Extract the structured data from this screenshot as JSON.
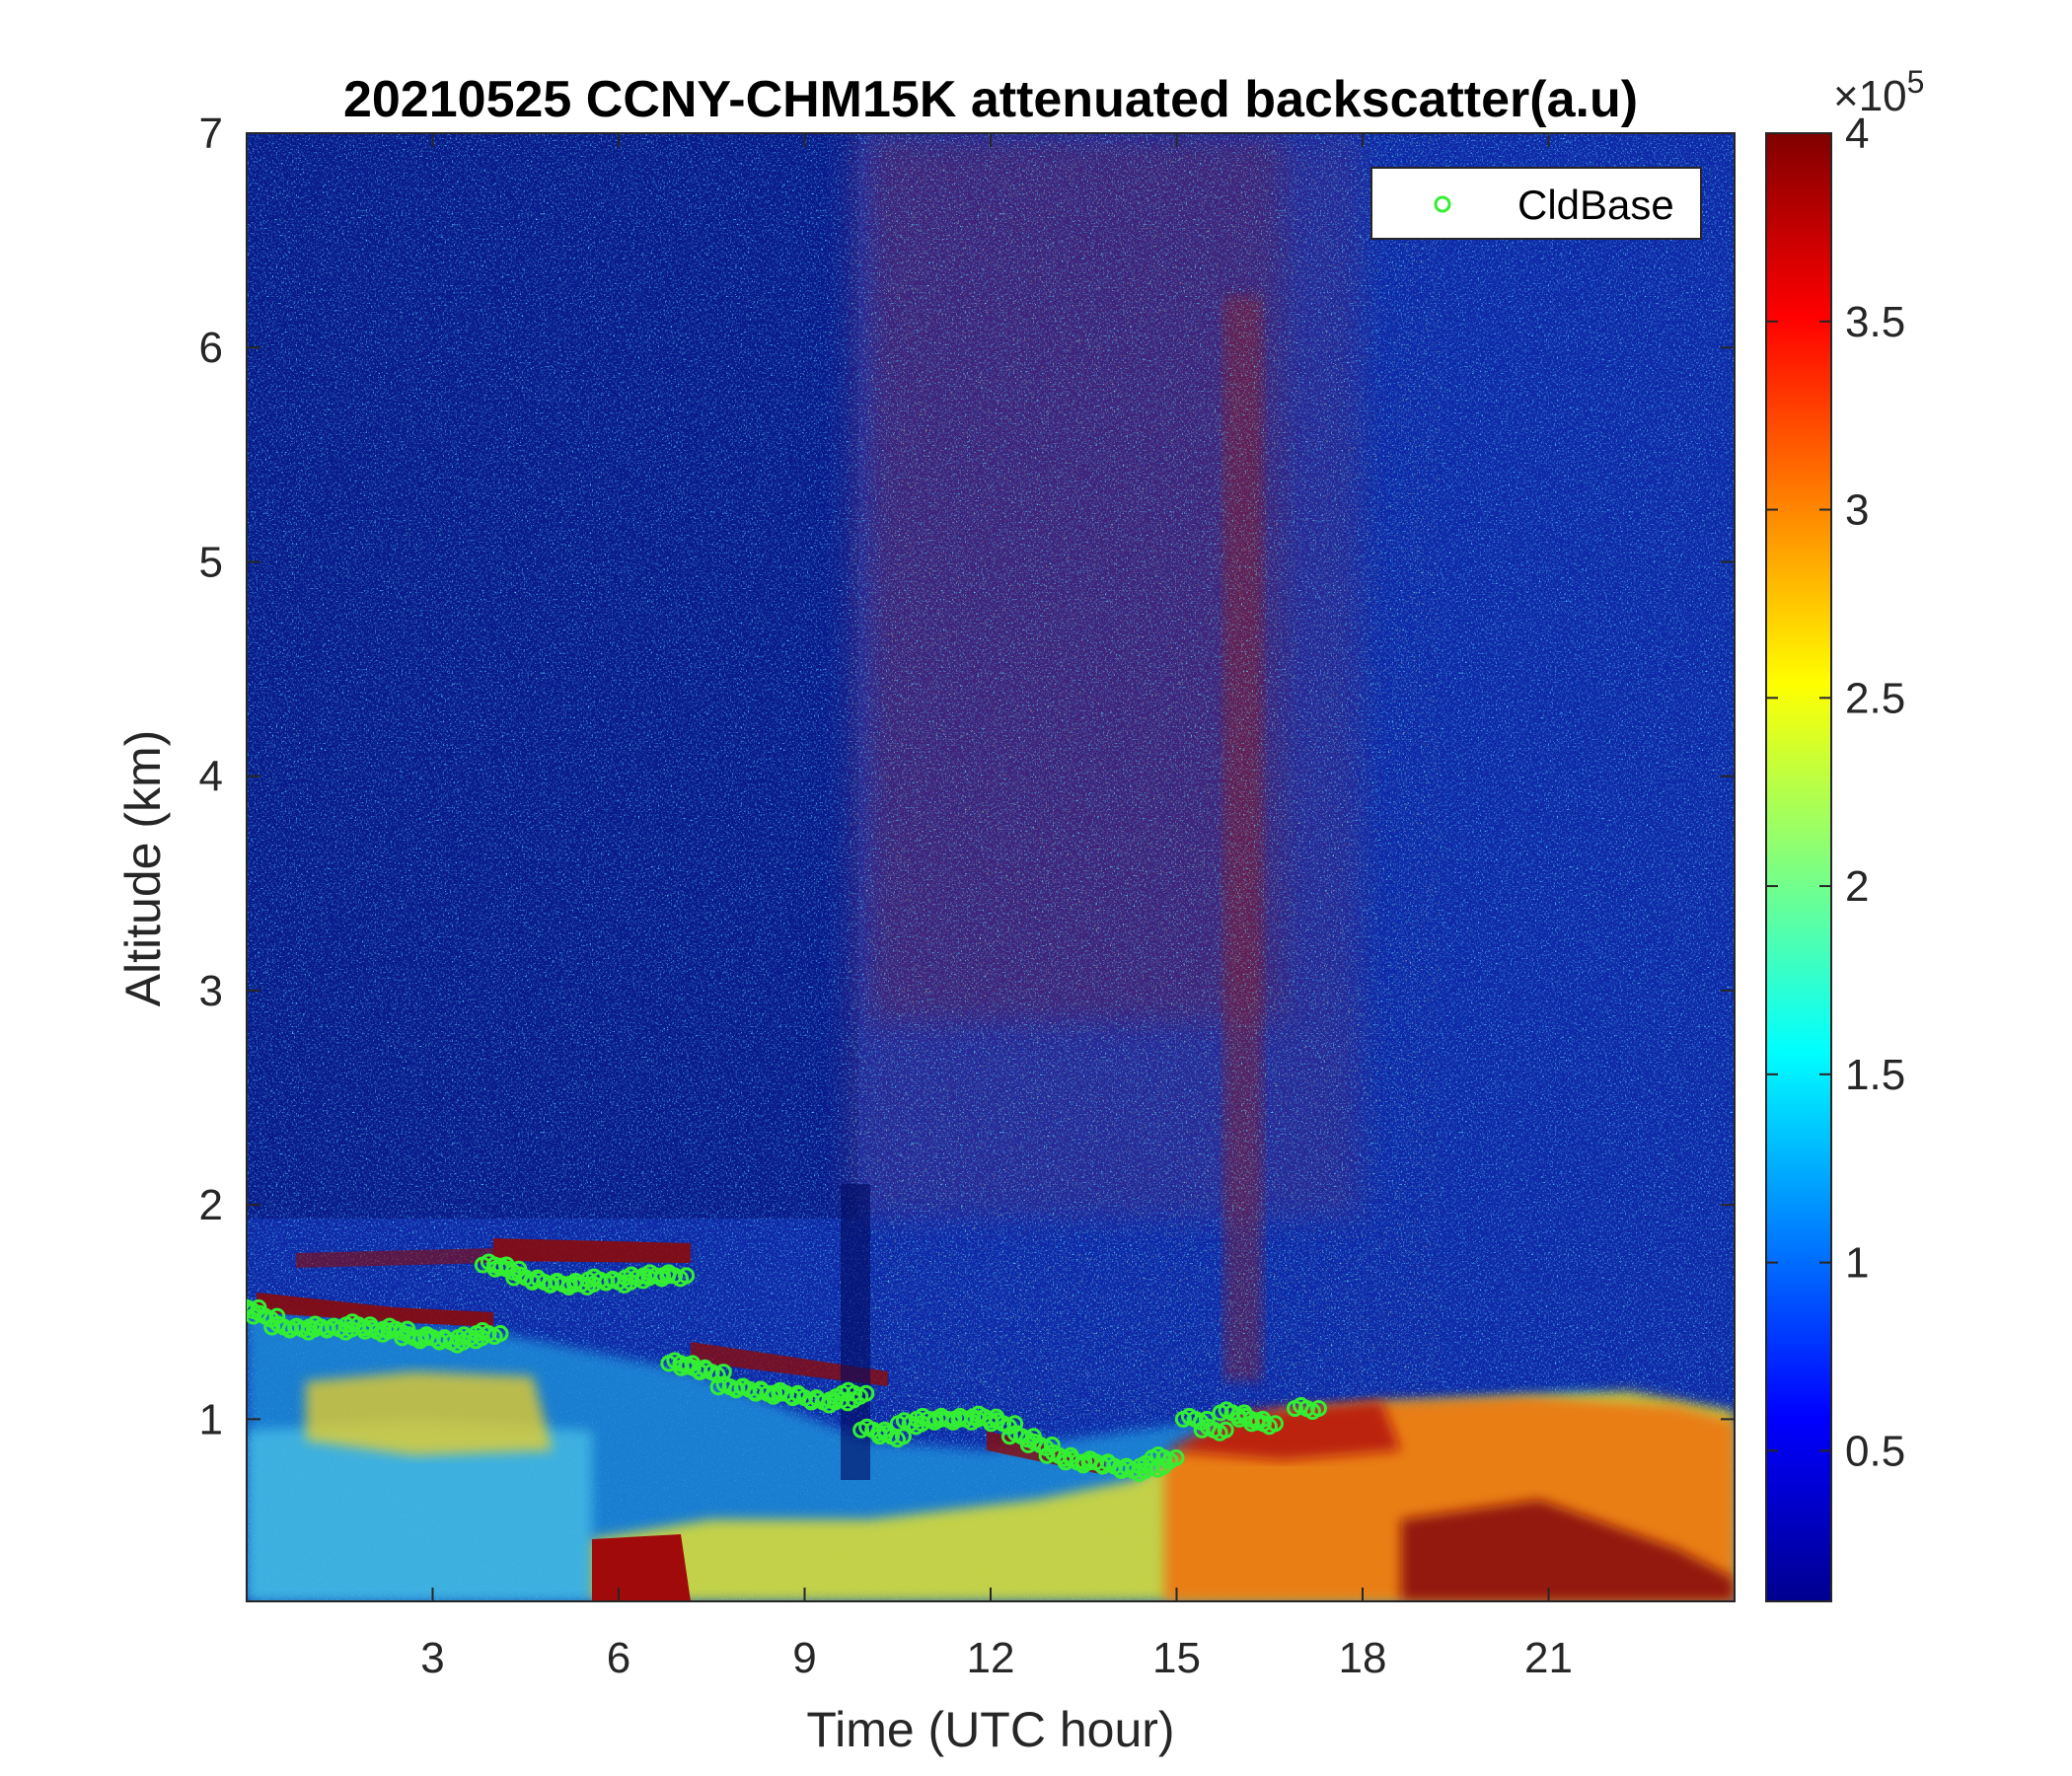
{
  "chart_data": {
    "type": "heatmap",
    "title": "20210525 CCNY-CHM15K attenuated backscatter(a.u)",
    "xlabel": "Time (UTC hour)",
    "ylabel": "Altitude (km)",
    "xlim": [
      0,
      24
    ],
    "ylim": [
      0.15,
      7
    ],
    "xticks": [
      3,
      6,
      9,
      12,
      15,
      18,
      21
    ],
    "yticks": [
      1,
      2,
      3,
      4,
      5,
      6,
      7
    ],
    "colormap": "jet",
    "colorbar": {
      "clim": [
        0.1,
        4
      ],
      "ticks": [
        0.5,
        1,
        1.5,
        2,
        2.5,
        3,
        3.5,
        4
      ],
      "tick_labels": [
        "0.5",
        "1",
        "1.5",
        "2",
        "2.5",
        "3",
        "3.5",
        "4"
      ],
      "exponent_label": "×10",
      "exponent_power": "5"
    },
    "legend": {
      "position": "top-right",
      "entries": [
        {
          "name": "CldBase",
          "marker": "circle",
          "color": "#33ee33"
        }
      ]
    },
    "series": [
      {
        "name": "CldBase",
        "type": "scatter",
        "x": [
          0.0,
          0.3,
          0.6,
          0.9,
          1.2,
          1.5,
          1.8,
          2.1,
          2.4,
          2.7,
          3.0,
          3.3,
          3.6,
          3.9,
          4.0,
          4.2,
          4.5,
          4.8,
          5.1,
          5.4,
          5.7,
          6.0,
          6.3,
          6.6,
          6.9,
          7.0,
          7.2,
          7.5,
          7.8,
          8.1,
          8.4,
          8.7,
          9.0,
          9.3,
          9.6,
          9.8,
          10.1,
          10.4,
          10.7,
          11.0,
          11.3,
          11.6,
          11.9,
          12.2,
          12.5,
          12.8,
          13.1,
          13.4,
          13.7,
          14.0,
          14.3,
          14.6,
          14.8,
          15.3,
          15.6,
          15.9,
          16.2,
          16.4,
          17.1
        ],
        "y": [
          1.52,
          1.48,
          1.43,
          1.42,
          1.43,
          1.42,
          1.44,
          1.41,
          1.42,
          1.38,
          1.38,
          1.36,
          1.38,
          1.4,
          1.72,
          1.7,
          1.66,
          1.64,
          1.63,
          1.63,
          1.65,
          1.64,
          1.66,
          1.67,
          1.67,
          1.26,
          1.24,
          1.22,
          1.15,
          1.14,
          1.12,
          1.12,
          1.1,
          1.08,
          1.09,
          1.12,
          0.95,
          0.92,
          0.98,
          1.0,
          1.0,
          1.0,
          1.01,
          0.98,
          0.92,
          0.88,
          0.83,
          0.8,
          0.8,
          0.78,
          0.76,
          0.78,
          0.82,
          1.0,
          0.95,
          1.03,
          1.0,
          0.98,
          1.05
        ]
      }
    ]
  }
}
